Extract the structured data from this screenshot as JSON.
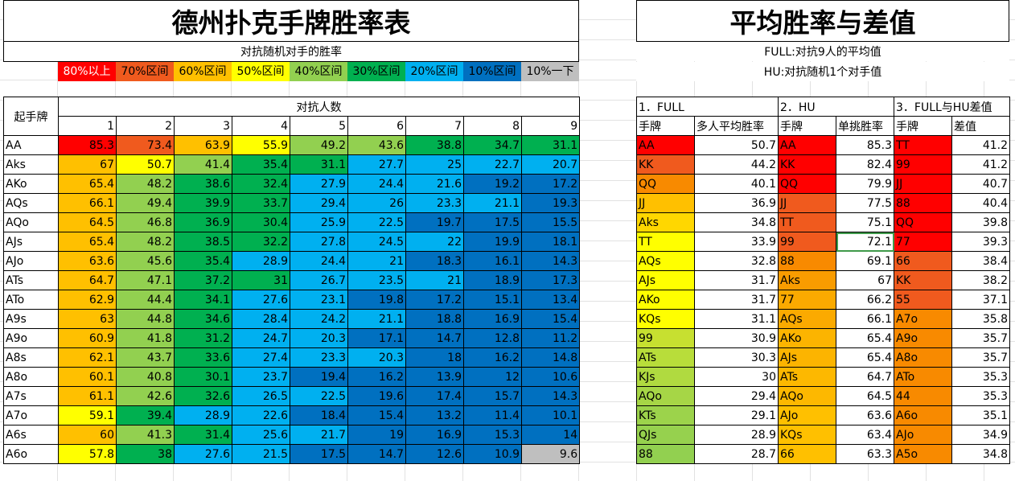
{
  "left": {
    "title": "德州扑克手牌胜率表",
    "subtitle": "对抗随机对手的胜率",
    "legend": [
      {
        "label": "80%以上",
        "bg": "#ff0000",
        "fg": "#ffffff"
      },
      {
        "label": "70%区间",
        "bg": "#f05a1e",
        "fg": "#000000"
      },
      {
        "label": "60%区间",
        "bg": "#ffc000",
        "fg": "#000000"
      },
      {
        "label": "50%区间",
        "bg": "#ffff00",
        "fg": "#000000"
      },
      {
        "label": "40%区间",
        "bg": "#92d050",
        "fg": "#000000"
      },
      {
        "label": "30%区间",
        "bg": "#00b050",
        "fg": "#000000"
      },
      {
        "label": "20%区间",
        "bg": "#00b0f0",
        "fg": "#000000"
      },
      {
        "label": "10%区间",
        "bg": "#0070c0",
        "fg": "#000000"
      },
      {
        "label": "10%一下",
        "bg": "#bfbfbf",
        "fg": "#000000"
      }
    ],
    "table": {
      "corner": "起手牌",
      "group_header": "对抗人数",
      "cols": [
        "1",
        "2",
        "3",
        "4",
        "5",
        "6",
        "7",
        "8",
        "9"
      ],
      "rows": [
        {
          "hand": "AA",
          "v": [
            85.3,
            73.4,
            63.9,
            55.9,
            49.2,
            43.6,
            38.8,
            34.7,
            31.1
          ]
        },
        {
          "hand": "Aks",
          "v": [
            67,
            50.7,
            41.4,
            35.4,
            31.1,
            27.7,
            25,
            22.7,
            20.7
          ]
        },
        {
          "hand": "AKo",
          "v": [
            65.4,
            48.2,
            38.6,
            32.4,
            27.9,
            24.4,
            21.6,
            19.2,
            17.2
          ]
        },
        {
          "hand": "AQs",
          "v": [
            66.1,
            49.4,
            39.9,
            33.7,
            29.4,
            26,
            23.3,
            21.1,
            19.3
          ]
        },
        {
          "hand": "AQo",
          "v": [
            64.5,
            46.8,
            36.9,
            30.4,
            25.9,
            22.5,
            19.7,
            17.5,
            15.5
          ]
        },
        {
          "hand": "AJs",
          "v": [
            65.4,
            48.2,
            38.5,
            32.2,
            27.8,
            24.5,
            22,
            19.9,
            18.1
          ]
        },
        {
          "hand": "AJo",
          "v": [
            63.6,
            45.6,
            35.4,
            28.9,
            24.4,
            21,
            18.3,
            16.1,
            14.3
          ]
        },
        {
          "hand": "ATs",
          "v": [
            64.7,
            47.1,
            37.2,
            31,
            26.7,
            23.5,
            21,
            18.9,
            17.3
          ]
        },
        {
          "hand": "ATo",
          "v": [
            62.9,
            44.4,
            34.1,
            27.6,
            23.1,
            19.8,
            17.2,
            15.1,
            13.4
          ]
        },
        {
          "hand": "A9s",
          "v": [
            63,
            44.8,
            34.6,
            28.4,
            24.2,
            21.1,
            18.8,
            16.9,
            15.4
          ]
        },
        {
          "hand": "A9o",
          "v": [
            60.9,
            41.8,
            31.2,
            24.7,
            20.3,
            17.1,
            14.7,
            12.8,
            11.2
          ]
        },
        {
          "hand": "A8s",
          "v": [
            62.1,
            43.7,
            33.6,
            27.4,
            23.3,
            20.3,
            18,
            16.2,
            14.8
          ]
        },
        {
          "hand": "A8o",
          "v": [
            60.1,
            40.8,
            30.1,
            23.7,
            19.4,
            16.2,
            13.9,
            12,
            10.6
          ]
        },
        {
          "hand": "A7s",
          "v": [
            61.1,
            42.6,
            32.6,
            26.5,
            22.5,
            19.6,
            17.4,
            15.7,
            14.3
          ]
        },
        {
          "hand": "A7o",
          "v": [
            59.1,
            39.4,
            28.9,
            22.6,
            18.4,
            15.4,
            13.2,
            11.4,
            10.1
          ]
        },
        {
          "hand": "A6s",
          "v": [
            60,
            41.3,
            31.4,
            25.6,
            21.7,
            19,
            16.9,
            15.3,
            14
          ]
        },
        {
          "hand": "A6o",
          "v": [
            57.8,
            38,
            27.6,
            21.5,
            17.5,
            14.7,
            12.6,
            10.9,
            9.6
          ]
        }
      ]
    }
  },
  "right": {
    "title": "平均胜率与差值",
    "line1": "FULL:对抗9人的平均值",
    "line2": "HU:对抗随机1个对手值",
    "sections": [
      {
        "title": "1．FULL",
        "h1": "手牌",
        "h2": "多人平均胜率"
      },
      {
        "title": "2．HU",
        "h1": "手牌",
        "h2": "单挑胜率"
      },
      {
        "title": "3．FULL与HU差值",
        "h1": "手牌",
        "h2": "差值"
      }
    ],
    "full": [
      {
        "hand": "AA",
        "val": 50.7,
        "bg": "#ff0000"
      },
      {
        "hand": "KK",
        "val": 44.2,
        "bg": "#f05a1e"
      },
      {
        "hand": "QQ",
        "val": 40.1,
        "bg": "#f88a00"
      },
      {
        "hand": "JJ",
        "val": 36.9,
        "bg": "#ffc000"
      },
      {
        "hand": "Aks",
        "val": 34.8,
        "bg": "#ffd700"
      },
      {
        "hand": "TT",
        "val": 33.9,
        "bg": "#ffff00"
      },
      {
        "hand": "AQs",
        "val": 32.8,
        "bg": "#ffff00"
      },
      {
        "hand": "AJs",
        "val": 31.7,
        "bg": "#ffff00"
      },
      {
        "hand": "AKo",
        "val": 31.7,
        "bg": "#ffff00"
      },
      {
        "hand": "KQs",
        "val": 31.1,
        "bg": "#ffff00"
      },
      {
        "hand": "99",
        "val": 30.9,
        "bg": "#c7e030"
      },
      {
        "hand": "ATs",
        "val": 30.3,
        "bg": "#b8dd3a"
      },
      {
        "hand": "KJs",
        "val": 30,
        "bg": "#b0da40"
      },
      {
        "hand": "AQo",
        "val": 29.4,
        "bg": "#a6d646"
      },
      {
        "hand": "KTs",
        "val": 29.1,
        "bg": "#9cd34b"
      },
      {
        "hand": "QJs",
        "val": 28.9,
        "bg": "#96d14e"
      },
      {
        "hand": "88",
        "val": 28.7,
        "bg": "#92d050"
      }
    ],
    "hu": [
      {
        "hand": "AA",
        "val": 85.3,
        "bg": "#ff0000"
      },
      {
        "hand": "KK",
        "val": 82.4,
        "bg": "#ff0000"
      },
      {
        "hand": "QQ",
        "val": 79.9,
        "bg": "#ff0000"
      },
      {
        "hand": "JJ",
        "val": 77.5,
        "bg": "#f05a1e"
      },
      {
        "hand": "TT",
        "val": 75.1,
        "bg": "#f05a1e"
      },
      {
        "hand": "99",
        "val": 72.1,
        "bg": "#f05a1e"
      },
      {
        "hand": "88",
        "val": 69.1,
        "bg": "#f88a00"
      },
      {
        "hand": "Aks",
        "val": 67,
        "bg": "#f99c00"
      },
      {
        "hand": "77",
        "val": 66.2,
        "bg": "#fbaa00"
      },
      {
        "hand": "AQs",
        "val": 66.1,
        "bg": "#fbaa00"
      },
      {
        "hand": "AKo",
        "val": 65.4,
        "bg": "#fcb400"
      },
      {
        "hand": "AJs",
        "val": 65.4,
        "bg": "#fcb400"
      },
      {
        "hand": "ATs",
        "val": 64.7,
        "bg": "#fdb800"
      },
      {
        "hand": "AQo",
        "val": 64.5,
        "bg": "#fdb800"
      },
      {
        "hand": "AJo",
        "val": 63.6,
        "bg": "#ffc000"
      },
      {
        "hand": "KQs",
        "val": 63.4,
        "bg": "#ffc000"
      },
      {
        "hand": "66",
        "val": 63.3,
        "bg": "#ffc000"
      }
    ],
    "diff": [
      {
        "hand": "TT",
        "val": 41.2,
        "bg": "#ff0000"
      },
      {
        "hand": "99",
        "val": 41.2,
        "bg": "#ff0000"
      },
      {
        "hand": "JJ",
        "val": 40.7,
        "bg": "#ff0000"
      },
      {
        "hand": "88",
        "val": 40.4,
        "bg": "#ff0000"
      },
      {
        "hand": "QQ",
        "val": 39.8,
        "bg": "#ff0000"
      },
      {
        "hand": "77",
        "val": 39.3,
        "bg": "#ff0000"
      },
      {
        "hand": "66",
        "val": 38.4,
        "bg": "#f05a1e"
      },
      {
        "hand": "KK",
        "val": 38.2,
        "bg": "#f05a1e"
      },
      {
        "hand": "55",
        "val": 37.1,
        "bg": "#f05a1e"
      },
      {
        "hand": "A7o",
        "val": 35.8,
        "bg": "#f88a00"
      },
      {
        "hand": "A9o",
        "val": 35.7,
        "bg": "#f88a00"
      },
      {
        "hand": "A8o",
        "val": 35.7,
        "bg": "#f88a00"
      },
      {
        "hand": "ATo",
        "val": 35.3,
        "bg": "#f88a00"
      },
      {
        "hand": "44",
        "val": 35.3,
        "bg": "#f88a00"
      },
      {
        "hand": "A6o",
        "val": 35.1,
        "bg": "#f88a00"
      },
      {
        "hand": "AJo",
        "val": 34.9,
        "bg": "#f88a00"
      },
      {
        "hand": "A5o",
        "val": 34.8,
        "bg": "#f88a00"
      }
    ]
  }
}
